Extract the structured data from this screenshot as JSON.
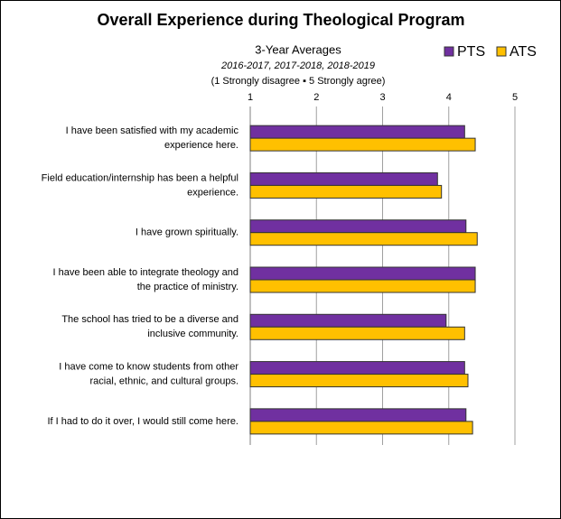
{
  "chart_data": {
    "type": "bar",
    "orientation": "horizontal",
    "title": "Overall Experience during Theological Program",
    "subtitle": [
      "3-Year Averages",
      "2016-2017, 2017-2018, 2018-2019",
      "(1 Strongly disagree ▪ 5 Strongly agree)"
    ],
    "categories": [
      [
        "I have been satisfied with my academic",
        "experience here."
      ],
      [
        "Field education/internship has been a helpful",
        "experience."
      ],
      [
        "I have grown spiritually."
      ],
      [
        "I have been able to integrate theology and",
        "the practice of ministry."
      ],
      [
        "The school has tried to be a diverse and",
        "inclusive community."
      ],
      [
        "I have come to know students from other",
        "racial, ethnic, and cultural groups."
      ],
      [
        "If I had to do it over, I would still come here."
      ]
    ],
    "series": [
      {
        "name": "PTS",
        "color": "#7030a0",
        "values": [
          4.24,
          3.83,
          4.26,
          4.4,
          3.96,
          4.24,
          4.26
        ]
      },
      {
        "name": "ATS",
        "color": "#ffc000",
        "values": [
          4.4,
          3.89,
          4.43,
          4.4,
          4.24,
          4.29,
          4.36
        ]
      }
    ],
    "xlim": [
      1,
      5
    ],
    "xticks": [
      1,
      2,
      3,
      4,
      5
    ],
    "grid": true,
    "legend": "top-right"
  }
}
